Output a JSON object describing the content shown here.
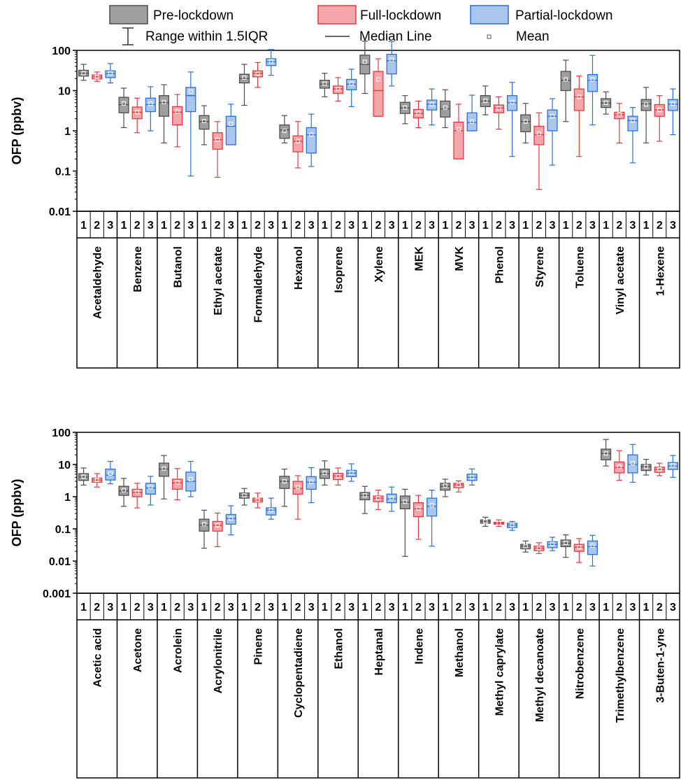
{
  "legend": {
    "pre": "Pre-lockdown",
    "full": "Full-lockdown",
    "partial": "Partial-lockdown",
    "range": "Range within 1.5IQR",
    "median": "Median Line",
    "mean": "Mean"
  },
  "colors": {
    "pre_fill": "#9e9e9e",
    "pre_stroke": "#4d4d4d",
    "full_fill": "#f4a6aa",
    "full_stroke": "#e8383f",
    "partial_fill": "#a8c6ee",
    "partial_stroke": "#2a6fd6"
  },
  "group_labels": [
    "1",
    "2",
    "3"
  ],
  "chart_data": [
    {
      "type": "box",
      "ylabel": "OFP (ppbv)",
      "yscale": "log",
      "ylim": [
        0.01,
        100
      ],
      "yticks": [
        "0.01",
        "0.1",
        "1",
        "10",
        "100"
      ],
      "categories": [
        "Acetaldehyde",
        "Benzene",
        "Butanol",
        "Ethyl acetate",
        "Formaldehyde",
        "Hexanol",
        "Isoprene",
        "Xylene",
        "MEK",
        "MVK",
        "Phenol",
        "Styrene",
        "Toluene",
        "Vinyl acetate",
        "1-Hexene"
      ],
      "series": [
        {
          "name": "Pre-lockdown",
          "boxes": [
            [
              18,
              23,
              27,
              32,
              45
            ],
            [
              1.2,
              2.8,
              4.5,
              6.8,
              11.5
            ],
            [
              0.5,
              2.3,
              5,
              7.5,
              14
            ],
            [
              0.45,
              1.1,
              1.7,
              2.4,
              4.2
            ],
            [
              4.3,
              15.5,
              20,
              25.5,
              45
            ],
            [
              0.5,
              0.65,
              1.05,
              1.4,
              2.4
            ],
            [
              7,
              11.5,
              14.5,
              18,
              27
            ],
            [
              8.5,
              26,
              45,
              76,
              170
            ],
            [
              1.5,
              2.7,
              3.7,
              5.1,
              7.5
            ],
            [
              1.2,
              2.2,
              3.5,
              5.5,
              10.5
            ],
            [
              2.5,
              4,
              5.5,
              7.5,
              13
            ],
            [
              0.5,
              0.95,
              1.7,
              2.5,
              4.8
            ],
            [
              1.7,
              10,
              18,
              30,
              57
            ],
            [
              2.6,
              3.8,
              4.9,
              6.3,
              9.3
            ],
            [
              0.5,
              3.2,
              4.7,
              6,
              12
            ]
          ],
          "means": [
            27,
            4.8,
            5.2,
            1.75,
            21,
            1.0,
            15,
            52,
            3.8,
            3.8,
            5.6,
            1.7,
            19,
            5.0,
            4.5
          ]
        },
        {
          "name": "Full-lockdown",
          "boxes": [
            [
              17,
              19.5,
              22,
              24.5,
              29
            ],
            [
              0.9,
              2.0,
              2.9,
              3.9,
              6.5
            ],
            [
              0.4,
              1.4,
              2.9,
              4.0,
              8.0
            ],
            [
              0.07,
              0.35,
              0.6,
              0.9,
              1.7
            ],
            [
              12,
              22,
              27,
              31,
              50
            ],
            [
              0.12,
              0.3,
              0.55,
              0.75,
              1.7
            ],
            [
              5.5,
              8.5,
              11,
              13,
              21
            ],
            [
              2.3,
              2.3,
              10,
              30,
              62
            ],
            [
              1.2,
              2.1,
              2.7,
              3.4,
              5.5
            ],
            [
              0.2,
              0.2,
              1.0,
              1.65,
              4.6
            ],
            [
              1.1,
              2.8,
              3.7,
              4.4,
              7.0
            ],
            [
              0.035,
              0.45,
              0.8,
              1.3,
              2.8
            ],
            [
              0.23,
              3.2,
              7,
              11,
              23
            ],
            [
              0.5,
              2.0,
              2.5,
              2.9,
              4.8
            ],
            [
              0.55,
              2.3,
              3.3,
              4.5,
              7.5
            ]
          ],
          "means": [
            22,
            2.9,
            3.0,
            0.6,
            26,
            0.55,
            11,
            19,
            2.8,
            1.1,
            3.6,
            0.85,
            7,
            2.6,
            3.3
          ]
        },
        {
          "name": "Partial-lockdown",
          "boxes": [
            [
              15.5,
              21,
              26.5,
              31,
              47
            ],
            [
              1.0,
              3.0,
              4.5,
              6.5,
              12.5
            ],
            [
              0.075,
              3.0,
              7.5,
              12,
              29
            ],
            [
              0.45,
              0.45,
              1.3,
              2.3,
              4.6
            ],
            [
              24,
              42,
              52,
              62,
              105
            ],
            [
              0.13,
              0.28,
              0.8,
              1.2,
              2.6
            ],
            [
              4.0,
              10.5,
              14.5,
              19,
              34
            ],
            [
              13,
              26,
              55,
              80,
              165
            ],
            [
              1.4,
              3.3,
              4.6,
              5.8,
              11
            ],
            [
              1.0,
              1.0,
              1.6,
              2.8,
              7.7
            ],
            [
              0.23,
              3.2,
              5.0,
              7.5,
              16
            ],
            [
              0.14,
              1.0,
              2.3,
              3.3,
              6.3
            ],
            [
              1.4,
              9.5,
              18,
              25,
              75
            ],
            [
              0.16,
              1.0,
              1.8,
              2.3,
              3.8
            ],
            [
              0.8,
              3.2,
              4.6,
              6.0,
              11
            ]
          ],
          "means": [
            27,
            4.7,
            9.5,
            1.5,
            54,
            0.8,
            15,
            58,
            4.5,
            1.7,
            5.2,
            2.3,
            19,
            1.8,
            4.7
          ]
        }
      ]
    },
    {
      "type": "box",
      "ylabel": "OFP (ppbv)",
      "yscale": "log",
      "ylim": [
        0.001,
        100
      ],
      "yticks": [
        "0.001",
        "0.01",
        "0.1",
        "1",
        "10",
        "100"
      ],
      "categories": [
        "Acetic acid",
        "Acetone",
        "Acrolein",
        "Acrylonitrile",
        "Pinene",
        "Cyclopentadiene",
        "Ethanol",
        "Heptanal",
        "Indene",
        "Methanol",
        "Methyl caprylate",
        "Methyl decanoate",
        "Nitrobenzene",
        "Trimethylbenzene",
        "3-Buten-1-yne"
      ],
      "series": [
        {
          "name": "Pre-lockdown",
          "boxes": [
            [
              2.3,
              3.2,
              4.1,
              5.2,
              7.8
            ],
            [
              0.5,
              1.1,
              1.5,
              2.1,
              3.7
            ],
            [
              0.85,
              4.3,
              7.2,
              11,
              19
            ],
            [
              0.025,
              0.085,
              0.13,
              0.2,
              0.38
            ],
            [
              0.55,
              0.9,
              1.1,
              1.3,
              1.8
            ],
            [
              0.5,
              1.8,
              3,
              4.3,
              7.2
            ],
            [
              2.3,
              3.7,
              5.2,
              7.2,
              13
            ],
            [
              0.3,
              0.8,
              1.1,
              1.35,
              2.1
            ],
            [
              0.014,
              0.42,
              0.68,
              1.05,
              1.7
            ],
            [
              1.0,
              1.6,
              2.1,
              2.6,
              3.5
            ],
            [
              0.12,
              0.15,
              0.17,
              0.19,
              0.23
            ],
            [
              0.019,
              0.024,
              0.029,
              0.033,
              0.042
            ],
            [
              0.013,
              0.028,
              0.036,
              0.045,
              0.065
            ],
            [
              9,
              14,
              22,
              30,
              60
            ],
            [
              4.7,
              6.5,
              8.5,
              10,
              14.5
            ]
          ],
          "means": [
            4.2,
            1.6,
            7.5,
            0.14,
            1.1,
            3.0,
            5.5,
            1.1,
            0.7,
            2.2,
            0.17,
            0.029,
            0.037,
            22,
            8.5
          ]
        },
        {
          "name": "Full-lockdown",
          "boxes": [
            [
              2.0,
              2.8,
              3.3,
              3.8,
              5.2
            ],
            [
              0.45,
              1.0,
              1.35,
              1.7,
              2.6
            ],
            [
              0.8,
              1.7,
              2.7,
              3.5,
              7.5
            ],
            [
              0.028,
              0.085,
              0.13,
              0.17,
              0.31
            ],
            [
              0.45,
              0.68,
              0.78,
              0.9,
              1.3
            ],
            [
              0.2,
              1.2,
              1.8,
              3.0,
              4.5
            ],
            [
              2.3,
              3.4,
              4.4,
              5.3,
              7.8
            ],
            [
              0.4,
              0.7,
              0.9,
              1.05,
              1.6
            ],
            [
              0.047,
              0.24,
              0.42,
              0.65,
              1.1
            ],
            [
              1.4,
              1.9,
              2.3,
              2.6,
              3.1
            ],
            [
              0.12,
              0.14,
              0.15,
              0.16,
              0.19
            ],
            [
              0.017,
              0.021,
              0.025,
              0.029,
              0.037
            ],
            [
              0.009,
              0.02,
              0.027,
              0.033,
              0.05
            ],
            [
              3.2,
              5.5,
              8,
              12,
              27
            ],
            [
              4.5,
              5.7,
              7,
              8.3,
              11
            ]
          ],
          "means": [
            3.3,
            1.4,
            2.8,
            0.13,
            0.8,
            2.0,
            4.3,
            0.9,
            0.43,
            2.3,
            0.15,
            0.025,
            0.027,
            8.5,
            7.1
          ]
        },
        {
          "name": "Partial-lockdown",
          "boxes": [
            [
              2.5,
              3.3,
              4.6,
              7.2,
              12.5
            ],
            [
              0.55,
              1.2,
              1.85,
              2.6,
              4.3
            ],
            [
              1.0,
              1.5,
              3.0,
              5.8,
              12.5
            ],
            [
              0.065,
              0.14,
              0.21,
              0.28,
              0.52
            ],
            [
              0.2,
              0.27,
              0.38,
              0.45,
              0.9
            ],
            [
              0.65,
              1.7,
              2.8,
              4.2,
              8.0
            ],
            [
              3.0,
              4.2,
              5.4,
              6.6,
              10.5
            ],
            [
              0.35,
              0.65,
              0.85,
              1.2,
              2.0
            ],
            [
              0.029,
              0.25,
              0.5,
              0.9,
              1.6
            ],
            [
              2.3,
              3.2,
              4,
              5,
              7.3
            ],
            [
              0.09,
              0.11,
              0.13,
              0.15,
              0.17
            ],
            [
              0.021,
              0.026,
              0.033,
              0.04,
              0.055
            ],
            [
              0.007,
              0.016,
              0.028,
              0.042,
              0.063
            ],
            [
              2.8,
              5.5,
              10,
              20,
              42
            ],
            [
              4.0,
              7.0,
              9,
              11.5,
              19
            ]
          ],
          "means": [
            5.2,
            2.0,
            3.5,
            0.21,
            0.38,
            2.9,
            5.6,
            0.9,
            0.55,
            4.1,
            0.13,
            0.034,
            0.03,
            11,
            9.5
          ]
        }
      ]
    }
  ]
}
